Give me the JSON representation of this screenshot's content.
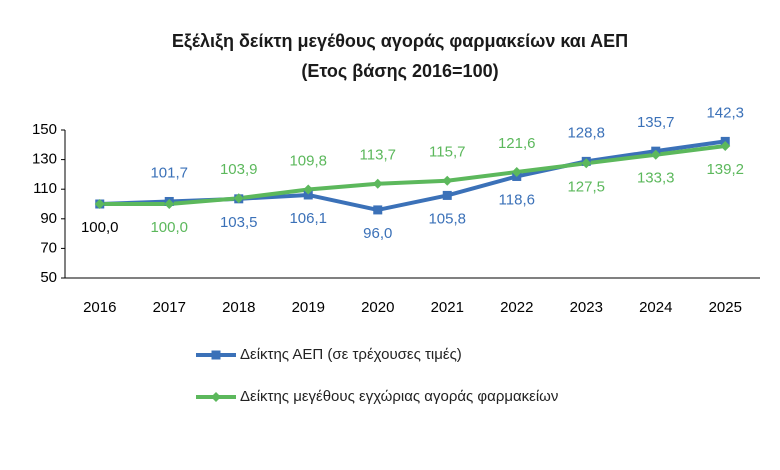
{
  "chart_data": {
    "type": "line",
    "title": "Εξέλιξη δείκτη μεγέθους αγοράς φαρμακείων και ΑΕΠ",
    "subtitle": "(Ετος βάσης 2016=100)",
    "categories": [
      "2016",
      "2017",
      "2018",
      "2019",
      "2020",
      "2021",
      "2022",
      "2023",
      "2024",
      "2025"
    ],
    "series": [
      {
        "name": "Δείκτης ΑΕΠ (σε τρέχουσες τιμές)",
        "color": "#3b71b8",
        "marker": "square",
        "values": [
          100.0,
          101.7,
          103.5,
          106.1,
          96.0,
          105.8,
          118.6,
          128.8,
          135.7,
          142.3
        ],
        "value_labels": [
          "100,0",
          "101,7",
          "103,5",
          "106,1",
          "96,0",
          "105,8",
          "118,6",
          "128,8",
          "135,7",
          "142,3"
        ]
      },
      {
        "name": "Δείκτης μεγέθους εγχώριας αγοράς φαρμακείων",
        "color": "#5cb85c",
        "marker": "diamond",
        "values": [
          100.0,
          100.0,
          103.9,
          109.8,
          113.7,
          115.7,
          121.6,
          127.5,
          133.3,
          139.2
        ],
        "value_labels": [
          null,
          "100,0",
          "103,9",
          "109,8",
          "113,7",
          "115,7",
          "121,6",
          "127,5",
          "133,3",
          "139,2"
        ]
      }
    ],
    "ylim": [
      50,
      150
    ],
    "yticks": [
      50,
      70,
      90,
      110,
      130,
      150
    ],
    "grid": false
  }
}
